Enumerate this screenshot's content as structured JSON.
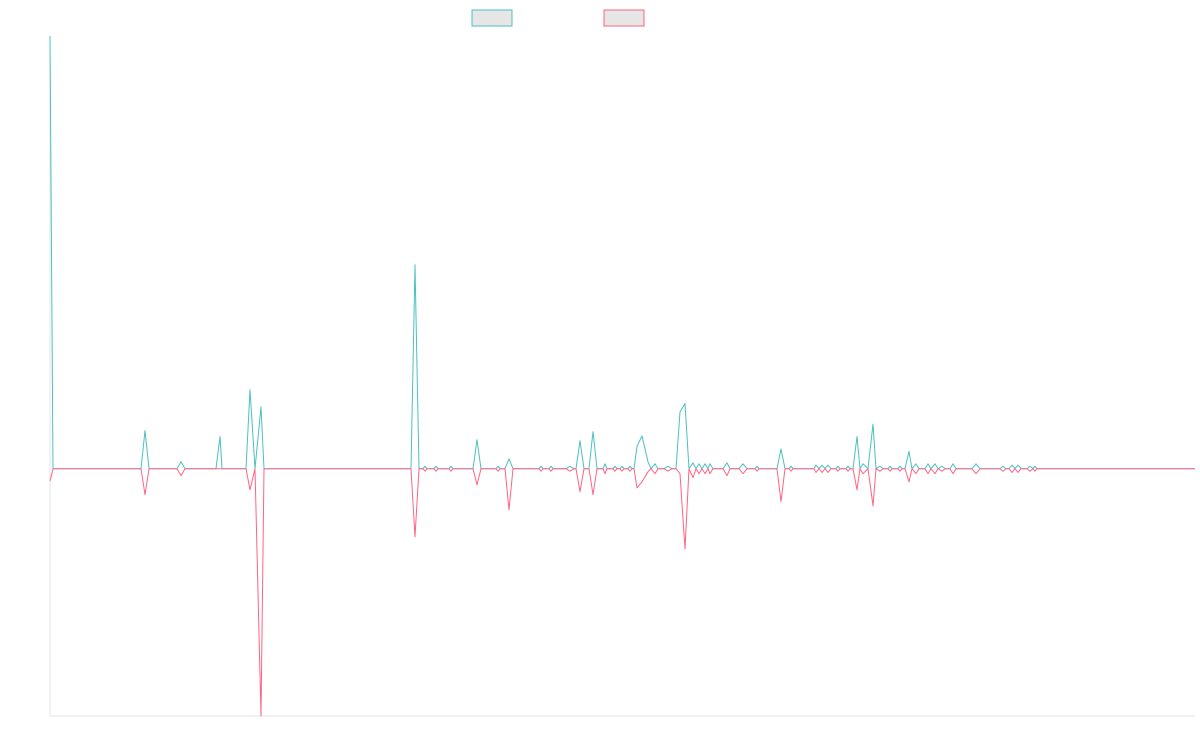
{
  "chart_data": {
    "type": "line",
    "x": [
      0,
      3,
      91,
      95,
      99,
      127,
      131,
      135,
      166,
      170,
      172,
      196,
      200,
      205,
      211,
      214,
      361,
      365,
      369,
      373,
      375,
      377,
      384,
      386,
      388,
      399,
      401,
      403,
      423,
      427,
      431,
      446,
      448,
      450,
      455,
      459,
      463,
      489,
      491,
      493,
      499,
      501,
      503,
      516,
      520,
      524,
      526,
      530,
      534,
      539,
      543,
      547,
      553,
      555,
      557,
      563,
      565,
      567,
      570,
      572,
      574,
      578,
      580,
      582,
      584,
      587,
      592,
      598,
      601,
      605,
      608,
      614,
      618,
      622,
      626,
      630,
      635,
      639,
      643,
      646,
      649,
      652,
      655,
      658,
      660,
      663,
      673,
      677,
      680,
      689,
      693,
      697,
      705,
      707,
      709,
      727,
      731,
      735,
      739,
      741,
      743,
      764,
      766,
      769,
      772,
      775,
      778,
      781,
      786,
      788,
      790,
      796,
      798,
      800,
      803,
      807,
      810,
      813,
      818,
      823,
      826,
      830,
      833,
      838,
      840,
      842,
      848,
      850,
      852,
      855,
      859,
      862,
      866,
      869,
      875,
      878,
      881,
      885,
      888,
      892,
      895,
      900,
      903,
      906,
      922,
      926,
      930,
      950,
      953,
      956,
      959,
      962,
      965,
      968,
      971,
      977,
      980,
      983,
      985,
      987,
      1145
    ],
    "series": [
      {
        "color": "#4bc0c0",
        "values": [
          175,
          0,
          0,
          15.4,
          0,
          0,
          2.8,
          0,
          0,
          13,
          0,
          0,
          32,
          0,
          25,
          0,
          0,
          82.5,
          0,
          0,
          1,
          0,
          0,
          1,
          0,
          0,
          1,
          0,
          0,
          11.7,
          0,
          0,
          1,
          0,
          0,
          4,
          0,
          0,
          1,
          0,
          0,
          1,
          0,
          0,
          1,
          0,
          0,
          11.3,
          0,
          0,
          15,
          0,
          0,
          2,
          0,
          0,
          1,
          0,
          0,
          1,
          0,
          0,
          1,
          0,
          0,
          9,
          13.3,
          2.8,
          0,
          2,
          0,
          0,
          1,
          0,
          0,
          23,
          26.3,
          0,
          2.4,
          0,
          2,
          0,
          2,
          0,
          2,
          0,
          0,
          2.4,
          0,
          0,
          2,
          0,
          0,
          1,
          0,
          0,
          8,
          0,
          0,
          1,
          0,
          0,
          1.5,
          0,
          1.5,
          0,
          1.5,
          0,
          0,
          1,
          0,
          0,
          1,
          0,
          0,
          13,
          0,
          2,
          0,
          18,
          0,
          1,
          0,
          0,
          1,
          0,
          0,
          1,
          0,
          0,
          7,
          0,
          2,
          0,
          0,
          2,
          0,
          2,
          0,
          1,
          0,
          0,
          2,
          0,
          0,
          2,
          0,
          0,
          1,
          0,
          0,
          1.5,
          0,
          1.5,
          0,
          0,
          1,
          0,
          1,
          0,
          0
        ]
      },
      {
        "color": "#ff6384",
        "values": [
          -5,
          0,
          0,
          -10.5,
          0,
          0,
          -2.8,
          0,
          0,
          0,
          0,
          0,
          -8.5,
          0,
          -100,
          0,
          0,
          -27.5,
          0,
          0,
          -1,
          0,
          0,
          -1,
          0,
          0,
          -1,
          0,
          0,
          -6.5,
          0,
          0,
          -1,
          0,
          0,
          -16.6,
          0,
          0,
          -1,
          0,
          0,
          -1,
          0,
          0,
          -1,
          0,
          0,
          -9.3,
          0,
          0,
          -10.5,
          0,
          0,
          -2,
          0,
          0,
          -1,
          0,
          0,
          -1,
          0,
          0,
          -1,
          0,
          0,
          -7.7,
          -5.3,
          -1.2,
          0,
          -2,
          0,
          0,
          -1,
          0,
          0,
          -2,
          -32.4,
          0,
          -3.6,
          0,
          -2,
          0,
          -2,
          0,
          -2,
          0,
          0,
          -2.8,
          0,
          0,
          -2,
          0,
          0,
          -1,
          0,
          0,
          -13.3,
          0,
          0,
          -1,
          0,
          0,
          -1.5,
          0,
          -1.5,
          0,
          -1.5,
          0,
          0,
          -1,
          0,
          0,
          -1,
          0,
          0,
          -8.5,
          0,
          -2,
          0,
          -15,
          0,
          -1,
          0,
          0,
          -1,
          0,
          0,
          -1,
          0,
          0,
          -5.3,
          0,
          -2,
          0,
          0,
          -2,
          0,
          -2,
          0,
          -1,
          0,
          0,
          -2,
          0,
          0,
          -2,
          0,
          0,
          -1,
          0,
          0,
          -1.5,
          0,
          -1.5,
          0,
          0,
          -1,
          0,
          -1,
          0,
          0
        ]
      }
    ],
    "xlim": [
      0,
      1145
    ],
    "ylim": [
      -100,
      175
    ]
  }
}
